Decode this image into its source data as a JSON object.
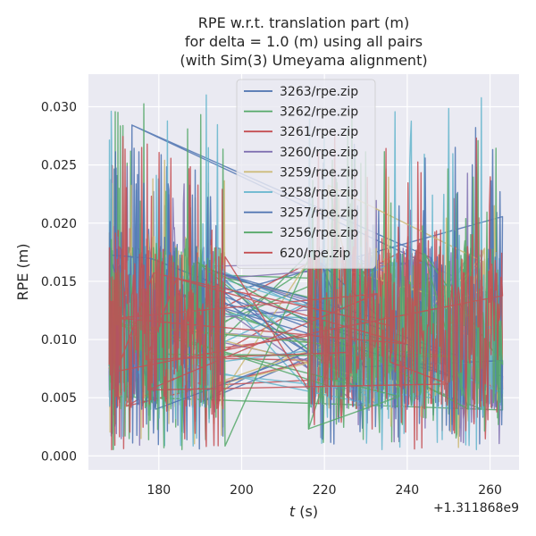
{
  "chart_data": {
    "type": "line",
    "title_lines": [
      "RPE w.r.t. translation part (m)",
      "for delta = 1.0 (m) using all pairs",
      "(with Sim(3) Umeyama alignment)"
    ],
    "xlabel_italic": "t",
    "xlabel_rest": " (s)",
    "ylabel": "RPE (m)",
    "x_offset_label": "+1.311868e9",
    "xlim": [
      163,
      267
    ],
    "ylim": [
      -0.0012,
      0.0328
    ],
    "xticks": [
      180,
      200,
      220,
      240,
      260
    ],
    "xtick_labels": [
      "180",
      "200",
      "220",
      "240",
      "260"
    ],
    "yticks": [
      0.0,
      0.005,
      0.01,
      0.015,
      0.02,
      0.025,
      0.03
    ],
    "ytick_labels": [
      "0.000",
      "0.005",
      "0.010",
      "0.015",
      "0.020",
      "0.025",
      "0.030"
    ],
    "legend_position": "top-center",
    "grid": true,
    "series": [
      {
        "name": "3263/rpe.zip",
        "color": "#4c72b0",
        "seed": 11,
        "peak": 0.0285
      },
      {
        "name": "3262/rpe.zip",
        "color": "#55a868",
        "seed": 23,
        "peak": 0.0305
      },
      {
        "name": "3261/rpe.zip",
        "color": "#c44e52",
        "seed": 37,
        "peak": 0.027
      },
      {
        "name": "3260/rpe.zip",
        "color": "#8172b2",
        "seed": 41,
        "peak": 0.025
      },
      {
        "name": "3259/rpe.zip",
        "color": "#ccb974",
        "seed": 53,
        "peak": 0.026
      },
      {
        "name": "3258/rpe.zip",
        "color": "#64b5cd",
        "seed": 67,
        "peak": 0.0315
      },
      {
        "name": "3257/rpe.zip",
        "color": "#4c72b0",
        "seed": 71,
        "peak": 0.0275
      },
      {
        "name": "3256/rpe.zip",
        "color": "#55a868",
        "seed": 83,
        "peak": 0.029
      },
      {
        "name": "620/rpe.zip",
        "color": "#c44e52",
        "seed": 97,
        "peak": 0.0285
      }
    ]
  }
}
